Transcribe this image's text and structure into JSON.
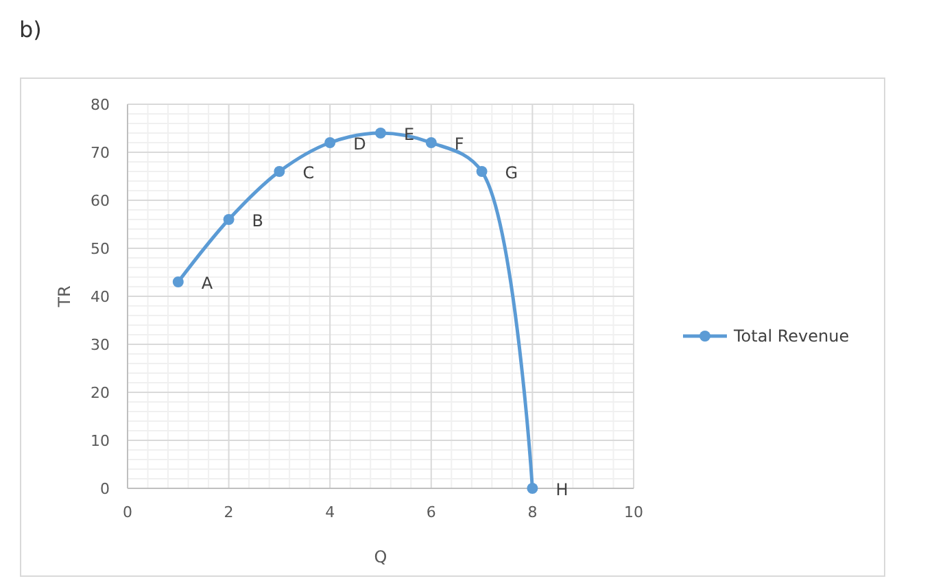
{
  "chart_data": {
    "type": "line",
    "xlabel": "Q",
    "ylabel": "TR",
    "x": [
      1,
      2,
      3,
      4,
      5,
      6,
      7,
      8
    ],
    "series": [
      {
        "name": "Total Revenue",
        "color": "#5b9bd5",
        "values": [
          43,
          56,
          66,
          72,
          74,
          72,
          66,
          0
        ]
      }
    ],
    "xlim": [
      0,
      10
    ],
    "xticks": [
      0,
      2,
      4,
      6,
      8,
      10
    ],
    "ylim": [
      0,
      80
    ],
    "yticks": [
      0,
      10,
      20,
      30,
      40,
      50,
      60,
      70,
      80
    ],
    "grid": true,
    "legend": "right",
    "marker": "circle",
    "annotations": [
      "b)",
      {
        "text": "A",
        "x": 1,
        "y": 43
      },
      {
        "text": "B",
        "x": 2,
        "y": 56
      },
      {
        "text": "C",
        "x": 3,
        "y": 66
      },
      {
        "text": "D",
        "x": 4,
        "y": 72
      },
      {
        "text": "E",
        "x": 5,
        "y": 74
      },
      {
        "text": "F",
        "x": 6,
        "y": 72
      },
      {
        "text": "G",
        "x": 7,
        "y": 66
      },
      {
        "text": "H",
        "x": 8,
        "y": 0
      }
    ]
  }
}
